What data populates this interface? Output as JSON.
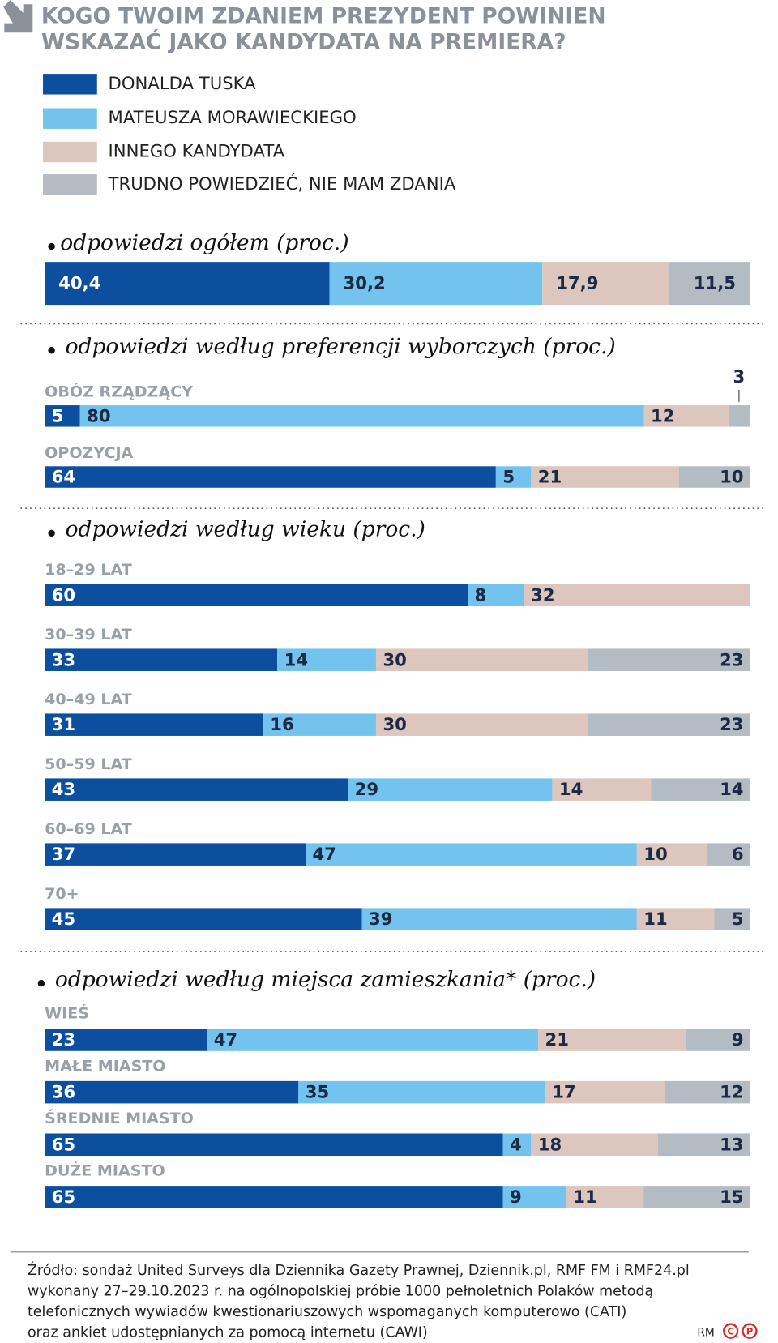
{
  "chart_data": {
    "type": "bar",
    "stacked": true,
    "horizontal": true,
    "title": [
      "KOGO TWOIM ZDANIEM PREZYDENT POWINIEN",
      "WSKAZAĆ JAKO KANDYDATA NA PREMIERA?"
    ],
    "xlim": [
      0,
      100
    ],
    "series": [
      {
        "name": "DONALDA TUSKA",
        "color": "#0c4f9e"
      },
      {
        "name": "MATEUSZA MORAWIECKIEGO",
        "color": "#74c3ee"
      },
      {
        "name": "INNEGO KANDYDATA",
        "color": "#dcc6bd"
      },
      {
        "name": "TRUDNO POWIEDZIEĆ, NIE MAM ZDANIA",
        "color": "#b3bbc3"
      }
    ],
    "sections": [
      {
        "subtitle": "odpowiedzi ogółem (proc.)",
        "categories": [
          null
        ],
        "values": [
          [
            40.4,
            30.2,
            17.9,
            11.5
          ]
        ],
        "value_labels": [
          [
            "40,4",
            "30,2",
            "17,9",
            "11,5"
          ]
        ]
      },
      {
        "subtitle": "odpowiedzi według preferencji wyborczych (proc.)",
        "categories": [
          "OBÓZ RZĄDZĄCY",
          "OPOZYCJA"
        ],
        "values": [
          [
            5,
            80,
            12,
            3
          ],
          [
            64,
            5,
            21,
            10
          ]
        ]
      },
      {
        "subtitle": "odpowiedzi według wieku (proc.)",
        "categories": [
          "18–29 LAT",
          "30–39 LAT",
          "40–49 LAT",
          "50–59 LAT",
          "60–69 LAT",
          "70+"
        ],
        "values": [
          [
            60,
            8,
            32,
            null
          ],
          [
            33,
            14,
            30,
            23
          ],
          [
            31,
            16,
            30,
            23
          ],
          [
            43,
            29,
            14,
            14
          ],
          [
            37,
            47,
            10,
            6
          ],
          [
            45,
            39,
            11,
            5
          ]
        ]
      },
      {
        "subtitle": "odpowiedzi według miejsca zamieszkania* (proc.)",
        "categories": [
          "WIEŚ",
          "MAŁE MIASTO",
          "ŚREDNIE MIASTO",
          "DUŻE MIASTO"
        ],
        "values": [
          [
            23,
            47,
            21,
            9
          ],
          [
            36,
            35,
            17,
            12
          ],
          [
            65,
            4,
            18,
            13
          ],
          [
            65,
            9,
            11,
            15
          ]
        ]
      }
    ],
    "source": [
      "Źródło: sondaż United Surveys dla Dziennika Gazety Prawnej, Dziennik.pl, RMF FM i RMF24.pl",
      "wykonany 27–29.10.2023 r. na ogólnopolskiej próbie 1000 pełnoletnich Polaków metodą",
      "telefonicznych wywiadów kwestionariuszowych wspomaganych komputerowo (CATI)",
      "oraz ankiet udostępnianych za pomocą internetu (CAWI)"
    ],
    "logo": [
      "RM",
      "C",
      "P"
    ]
  }
}
